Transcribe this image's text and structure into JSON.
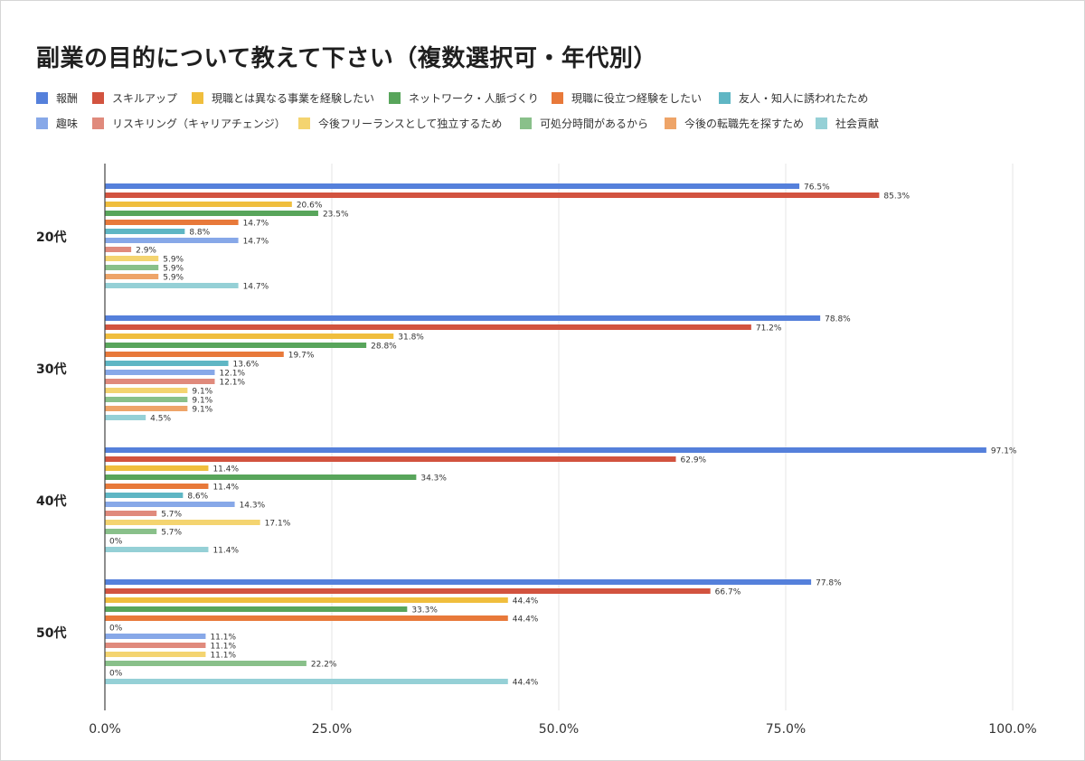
{
  "title": "副業の目的について教えて下さい（複数選択可・年代別）",
  "chart_data": {
    "type": "bar",
    "orientation": "horizontal",
    "title": "副業の目的について教えて下さい（複数選択可・年代別）",
    "categories": [
      "20代",
      "30代",
      "40代",
      "50代"
    ],
    "xlim": [
      0,
      100
    ],
    "x_ticks": [
      "0.0%",
      "25.0%",
      "50.0%",
      "75.0%",
      "100.0%"
    ],
    "value_suffix": "%",
    "grid": true,
    "legend_position": "top",
    "series": [
      {
        "name": "報酬",
        "color": "#5580db",
        "values": [
          76.5,
          78.8,
          97.1,
          77.8
        ]
      },
      {
        "name": "スキルアップ",
        "color": "#d2533f",
        "values": [
          85.3,
          71.2,
          62.9,
          66.7
        ]
      },
      {
        "name": "現職とは異なる事業を経験したい",
        "color": "#f0be3d",
        "values": [
          20.6,
          31.8,
          11.4,
          44.4
        ]
      },
      {
        "name": "ネットワーク・人脈づくり",
        "color": "#58a55b",
        "values": [
          23.5,
          28.8,
          34.3,
          33.3
        ]
      },
      {
        "name": "現職に役立つ経験をしたい",
        "color": "#e8793a",
        "values": [
          14.7,
          19.7,
          11.4,
          44.4
        ]
      },
      {
        "name": "友人・知人に誘われたため",
        "color": "#5fb6c4",
        "values": [
          8.8,
          13.6,
          8.6,
          0
        ]
      },
      {
        "name": "趣味",
        "color": "#87a8e8",
        "values": [
          14.7,
          12.1,
          14.3,
          11.1
        ]
      },
      {
        "name": "リスキリング（キャリアチェンジ）",
        "color": "#e08a7c",
        "values": [
          2.9,
          12.1,
          5.7,
          11.1
        ]
      },
      {
        "name": "今後フリーランスとして独立するため",
        "color": "#f4d470",
        "values": [
          5.9,
          9.1,
          17.1,
          11.1
        ]
      },
      {
        "name": "可処分時間があるから",
        "color": "#89c08a",
        "values": [
          5.9,
          9.1,
          5.7,
          22.2
        ]
      },
      {
        "name": "今後の転職先を探すため",
        "color": "#eea468",
        "values": [
          5.9,
          9.1,
          0,
          0
        ]
      },
      {
        "name": "社会貢献",
        "color": "#95d0d6",
        "values": [
          14.7,
          4.5,
          11.4,
          44.4
        ]
      }
    ]
  }
}
